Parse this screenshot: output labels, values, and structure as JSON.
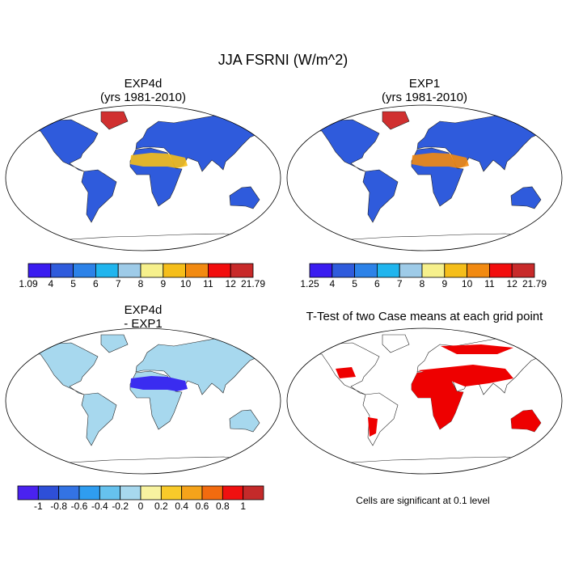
{
  "title": "JJA FSRNI (W/m^2)",
  "panels": [
    {
      "title": [
        "EXP4d",
        "(yrs 1981-2010)"
      ]
    },
    {
      "title": [
        "EXP1",
        "(yrs 1981-2010)"
      ]
    },
    {
      "title": [
        "EXP4d",
        "- EXP1"
      ]
    },
    {
      "title": [
        "T-Test of two Case means at each grid point"
      ]
    }
  ],
  "colorbars": [
    {
      "labels": [
        1.09,
        4,
        5,
        6,
        7,
        8,
        9,
        10,
        11,
        12,
        21.79
      ],
      "colors": [
        "#3a1cf0",
        "#2f5bdc",
        "#2c82e8",
        "#20b5ee",
        "#9ecbe8",
        "#f6f08c",
        "#f5be1a",
        "#f28a11",
        "#f20d0d",
        "#c82a2a"
      ]
    },
    {
      "labels": [
        1.25,
        4,
        5,
        6,
        7,
        8,
        9,
        10,
        11,
        12,
        21.79
      ],
      "colors": [
        "#3a1cf0",
        "#2f5bdc",
        "#2c82e8",
        "#20b5ee",
        "#9ecbe8",
        "#f6f08c",
        "#f5be1a",
        "#f28a11",
        "#f20d0d",
        "#c82a2a"
      ]
    },
    {
      "labels": [
        -1,
        -0.8,
        -0.6,
        -0.4,
        -0.2,
        0,
        0.2,
        0.4,
        0.6,
        0.8,
        1
      ],
      "colors": [
        "#4a22f0",
        "#2e4fd8",
        "#3373e4",
        "#2f9df0",
        "#66c2ee",
        "#a7d8ee",
        "#f8f3a0",
        "#f8ca2a",
        "#f5a31a",
        "#f26b0f",
        "#f01010",
        "#c42a2a"
      ]
    }
  ],
  "note": "Cells are significant at 0.1 level"
}
